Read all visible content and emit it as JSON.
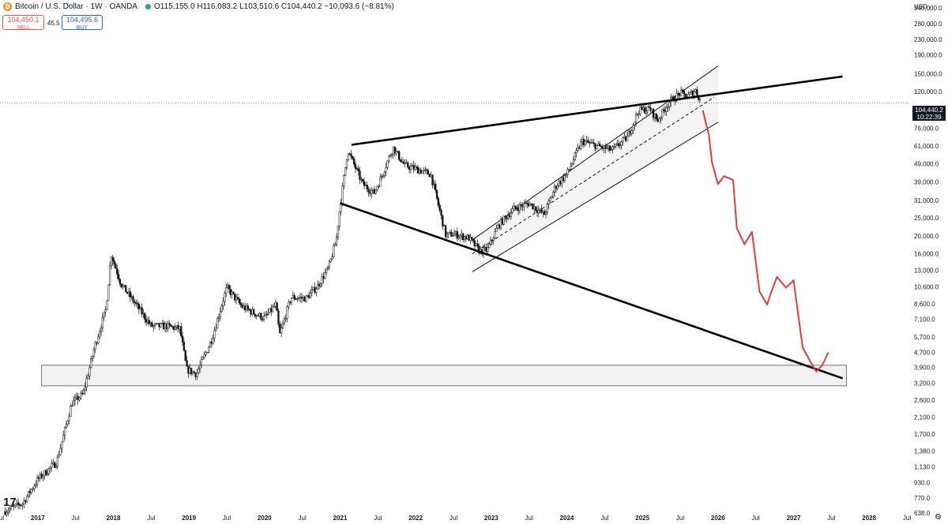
{
  "header": {
    "title": "Bitcoin / U.S. Dollar · 1W · OANDA",
    "ohlc": "O115,155.0  H116,083.2  L103,510.6  C104,440.2  −10,093.6 (−8.81%)"
  },
  "trade": {
    "sell_price": "104,450.1",
    "sell_label": "SELL",
    "spread": "45.5",
    "buy_price": "104,495.6",
    "buy_label": "BUY"
  },
  "price_axis": {
    "currency": "USD",
    "ticks": [
      "340,000.0",
      "280,000.0",
      "230,000.0",
      "190,000.0",
      "150,000.0",
      "120,000.0",
      "76,000.0",
      "61,000.0",
      "49,000.0",
      "39,000.0",
      "31,000.0",
      "25,000.0",
      "20,000.0",
      "16,000.0",
      "13,000.0",
      "10,600.0",
      "8,600.0",
      "7,100.0",
      "5,700.0",
      "4,700.0",
      "3,900.0",
      "3,200.0",
      "2,600.0",
      "2,100.0",
      "1,700.0",
      "1,380.0",
      "1,130.0",
      "930.0",
      "770.0",
      "638.0"
    ],
    "current_price": "104,440.2",
    "countdown": "10:22:39"
  },
  "time_axis": {
    "labels": [
      "Jul",
      "2017",
      "Jul",
      "2018",
      "Jul",
      "2019",
      "Jul",
      "2020",
      "Jul",
      "2021",
      "Jul",
      "2022",
      "Jul",
      "2023",
      "Jul",
      "2024",
      "Jul",
      "2025",
      "Jul",
      "2026",
      "Jul",
      "2027",
      "Jul",
      "2028",
      "Jul"
    ]
  },
  "colors": {
    "candle": "#111111",
    "projection": "#e03c3c",
    "trendline": "#000000",
    "support_zone": "#f0f0f0",
    "channel_fill": "#f4f4f4"
  },
  "icons": {
    "logo": "tradingview-logo-icon",
    "settings": "gear-icon",
    "symbol": "bitcoin-icon"
  },
  "chart_data": {
    "type": "candlestick",
    "scale": "log",
    "x_range": [
      2016.5,
      2028.5
    ],
    "y_range": [
      638,
      340000
    ],
    "series": [
      {
        "kind": "price",
        "x": [
          2016.55,
          2016.8,
          2017.0,
          2017.25,
          2017.45,
          2017.6,
          2017.75,
          2017.9,
          2017.97,
          2018.1,
          2018.3,
          2018.5,
          2018.7,
          2018.88,
          2018.97,
          2019.1,
          2019.3,
          2019.5,
          2019.7,
          2019.9,
          2020.0,
          2020.15,
          2020.2,
          2020.35,
          2020.55,
          2020.7,
          2020.85,
          2020.95,
          2021.0,
          2021.1,
          2021.3,
          2021.45,
          2021.55,
          2021.7,
          2021.85,
          2022.0,
          2022.2,
          2022.4,
          2022.5,
          2022.7,
          2022.85,
          2022.95,
          2023.1,
          2023.3,
          2023.5,
          2023.7,
          2023.85,
          2024.0,
          2024.2,
          2024.4,
          2024.6,
          2024.8,
          2024.95,
          2025.1,
          2025.2,
          2025.35,
          2025.5,
          2025.6,
          2025.7,
          2025.78
        ],
        "y": [
          650,
          720,
          970,
          1200,
          2500,
          2800,
          5000,
          8000,
          16000,
          11000,
          8500,
          6500,
          6500,
          6300,
          3800,
          3600,
          5500,
          10500,
          8300,
          7500,
          7200,
          8500,
          5800,
          9300,
          9200,
          10700,
          13500,
          19000,
          29000,
          58000,
          38000,
          34000,
          42000,
          60000,
          48000,
          46000,
          43000,
          20000,
          20500,
          19500,
          16500,
          16800,
          23000,
          28000,
          30000,
          26000,
          37000,
          43000,
          65000,
          61000,
          58000,
          68000,
          95000,
          97000,
          84000,
          105000,
          118000,
          113000,
          123000,
          104440
        ]
      },
      {
        "kind": "projection",
        "x": [
          2025.8,
          2025.88,
          2025.92,
          2026.0,
          2026.08,
          2026.2,
          2026.25,
          2026.35,
          2026.45,
          2026.55,
          2026.65,
          2026.7,
          2026.78,
          2026.9,
          2027.0,
          2027.12,
          2027.22,
          2027.3,
          2027.38,
          2027.46
        ],
        "y": [
          95000,
          70000,
          50000,
          38000,
          42000,
          40000,
          22000,
          18000,
          21000,
          10000,
          8500,
          9800,
          12000,
          10500,
          11500,
          5000,
          4200,
          3700,
          4000,
          4700
        ]
      }
    ],
    "annotations": [
      {
        "kind": "trendline",
        "points": [
          [
            2021.15,
            62000
          ],
          [
            2027.65,
            145000
          ]
        ]
      },
      {
        "kind": "trendline",
        "points": [
          [
            2021.0,
            30000
          ],
          [
            2027.65,
            3400
          ]
        ]
      },
      {
        "kind": "channel",
        "lower": [
          [
            2022.75,
            12800
          ],
          [
            2026.0,
            82000
          ]
        ],
        "upper": [
          [
            2022.75,
            19000
          ],
          [
            2026.0,
            165000
          ]
        ],
        "mid": [
          [
            2022.75,
            16000
          ],
          [
            2025.95,
            112000
          ]
        ]
      },
      {
        "kind": "zone",
        "x": [
          2017.05,
          2027.7
        ],
        "y": [
          3100,
          4000
        ]
      }
    ]
  }
}
